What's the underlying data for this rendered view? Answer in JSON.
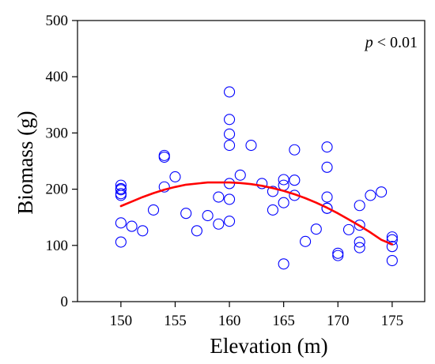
{
  "chart_data": {
    "type": "scatter",
    "title": "",
    "xlabel": "Elevation (m)",
    "ylabel": "Biomass (g)",
    "xlim": [
      146,
      178
    ],
    "ylim": [
      0,
      500
    ],
    "xticks": [
      150,
      155,
      160,
      165,
      170,
      175
    ],
    "yticks": [
      0,
      100,
      200,
      300,
      400,
      500
    ],
    "xtick_labels": [
      "150",
      "155",
      "160",
      "165",
      "170",
      "175"
    ],
    "ytick_labels": [
      "0",
      "100",
      "200",
      "300",
      "400",
      "500"
    ],
    "annotation": {
      "italic": "p",
      "rest": " < 0.01"
    },
    "grid": false,
    "points": {
      "color": "#0000ff",
      "marker": "open-circle",
      "x": [
        150,
        150,
        150,
        150,
        150,
        150,
        150,
        151,
        152,
        153,
        154,
        154,
        154,
        155,
        156,
        157,
        158,
        159,
        159,
        160,
        160,
        160,
        160,
        160,
        160,
        160,
        161,
        162,
        163,
        164,
        164,
        165,
        165,
        165,
        165,
        166,
        166,
        166,
        167,
        168,
        169,
        169,
        169,
        169,
        169,
        170,
        170,
        171,
        172,
        172,
        172,
        172,
        173,
        174,
        175,
        175,
        175,
        175
      ],
      "y": [
        207,
        199,
        192,
        189,
        140,
        106,
        201,
        134,
        126,
        163,
        260,
        257,
        204,
        222,
        157,
        126,
        153,
        186,
        138,
        373,
        324,
        298,
        278,
        182,
        143,
        210,
        225,
        278,
        210,
        196,
        163,
        217,
        207,
        176,
        67,
        270,
        216,
        189,
        107,
        129,
        275,
        239,
        186,
        166,
        166,
        82,
        86,
        128,
        171,
        136,
        106,
        96,
        189,
        195,
        115,
        110,
        98,
        73
      ]
    },
    "fit": {
      "color": "#ff0000",
      "type": "quadratic",
      "x": [
        150,
        151,
        152,
        153,
        154,
        155,
        156,
        157,
        158,
        159,
        160,
        161,
        162,
        163,
        164,
        165,
        166,
        167,
        168,
        169,
        170,
        171,
        172,
        173,
        174,
        175
      ],
      "y": [
        170,
        178,
        186,
        193,
        199,
        204,
        208,
        210,
        212,
        212,
        212,
        211,
        209,
        206,
        202,
        197,
        191,
        184,
        176,
        167,
        157,
        146,
        135,
        123,
        110,
        102
      ]
    }
  }
}
